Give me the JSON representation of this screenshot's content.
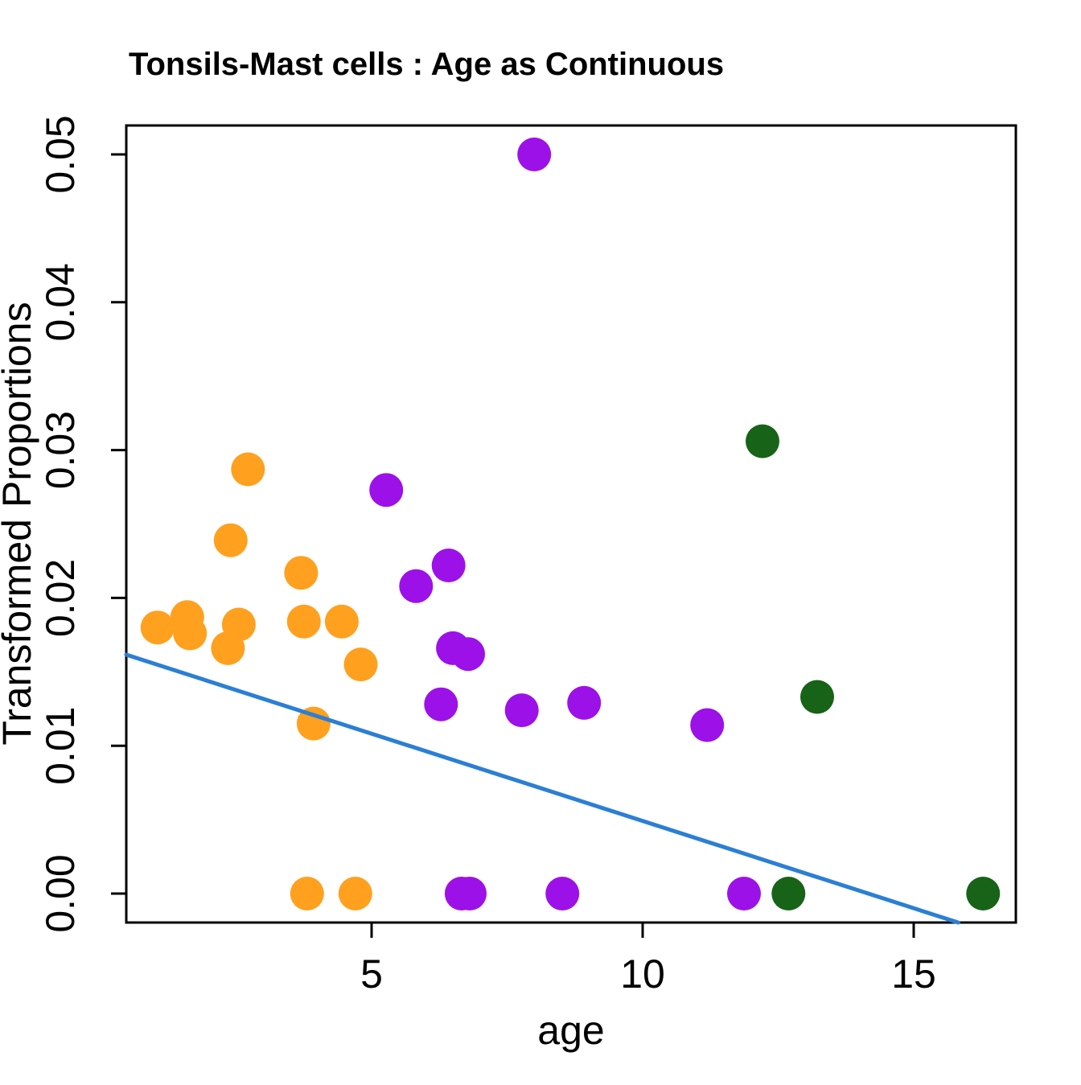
{
  "title": "Tonsils-Mast cells : Age as Continuous",
  "chart_data": {
    "type": "scatter",
    "title": "Tonsils-Mast cells : Age as Continuous",
    "xlabel": "age",
    "ylabel": "Transformed Proportions",
    "xlim": [
      0.48,
      16.88
    ],
    "ylim": [
      -0.002,
      0.0521
    ],
    "grid": false,
    "legend": "none",
    "xticks": {
      "values": [
        5,
        10,
        15
      ],
      "labels": [
        "5",
        "10",
        "15"
      ]
    },
    "yticks": {
      "values": [
        0.0,
        0.01,
        0.02,
        0.03,
        0.04,
        0.05
      ],
      "labels": [
        "0.00",
        "0.01",
        "0.02",
        "0.03",
        "0.04",
        "0.05"
      ]
    },
    "point_radius_px": 21,
    "series": [
      {
        "name": "group-orange",
        "color": "#FFA01E",
        "points": [
          [
            1.05,
            0.018
          ],
          [
            1.6,
            0.0187
          ],
          [
            1.65,
            0.0176
          ],
          [
            2.35,
            0.0166
          ],
          [
            2.4,
            0.0239
          ],
          [
            2.55,
            0.0182
          ],
          [
            2.72,
            0.0287
          ],
          [
            3.7,
            0.0217
          ],
          [
            3.75,
            0.0184
          ],
          [
            4.45,
            0.0184
          ],
          [
            4.8,
            0.0155
          ],
          [
            3.93,
            0.0115
          ],
          [
            3.81,
            0.0
          ],
          [
            4.7,
            0.0
          ]
        ]
      },
      {
        "name": "group-purple",
        "color": "#9C11E8",
        "points": [
          [
            8.0,
            0.05
          ],
          [
            5.27,
            0.0273
          ],
          [
            6.42,
            0.0222
          ],
          [
            5.82,
            0.0208
          ],
          [
            6.5,
            0.0166
          ],
          [
            6.78,
            0.0162
          ],
          [
            6.28,
            0.0128
          ],
          [
            7.77,
            0.0124
          ],
          [
            8.92,
            0.0129
          ],
          [
            11.19,
            0.0114
          ],
          [
            6.66,
            0.0
          ],
          [
            6.81,
            0.0
          ],
          [
            8.52,
            0.0
          ],
          [
            11.87,
            0.0
          ]
        ]
      },
      {
        "name": "group-darkgreen",
        "color": "#176318",
        "points": [
          [
            12.21,
            0.0306
          ],
          [
            13.22,
            0.0133
          ],
          [
            12.69,
            0.0
          ],
          [
            16.28,
            0.0
          ]
        ]
      }
    ],
    "trend_line": {
      "color": "#2B7FD4",
      "x1": 0.475,
      "y1": 0.01616,
      "x2": 15.82,
      "y2": -0.00196
    }
  }
}
